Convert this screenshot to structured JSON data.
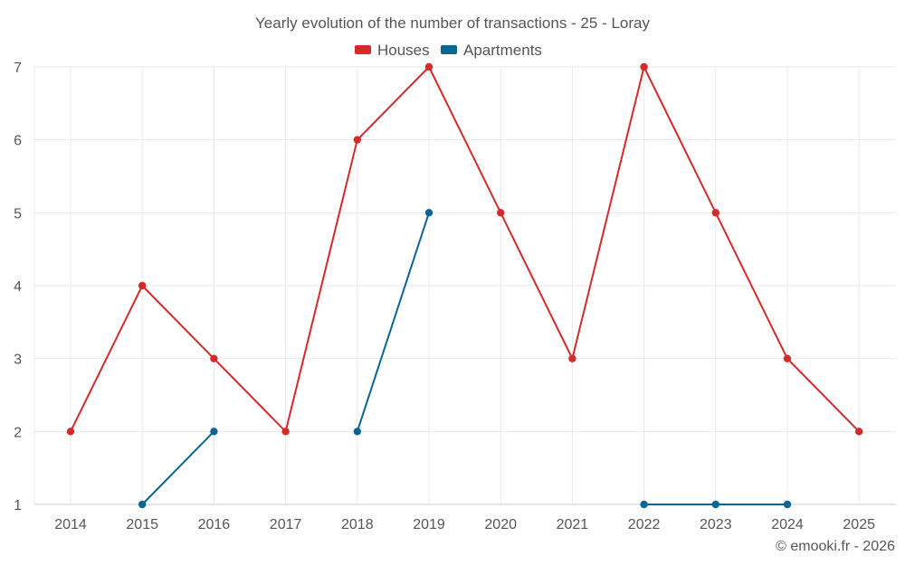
{
  "chart_data": {
    "type": "line",
    "title": "Yearly evolution of the number of transactions - 25 - Loray",
    "categories": [
      "2014",
      "2015",
      "2016",
      "2017",
      "2018",
      "2019",
      "2020",
      "2021",
      "2022",
      "2023",
      "2024",
      "2025"
    ],
    "series": [
      {
        "name": "Houses",
        "color": "#d42a2a",
        "values": [
          2,
          4,
          3,
          2,
          6,
          7,
          5,
          3,
          7,
          5,
          3,
          2
        ]
      },
      {
        "name": "Apartments",
        "color": "#0a6496",
        "values": [
          null,
          1,
          2,
          null,
          2,
          5,
          null,
          null,
          1,
          1,
          1,
          null
        ]
      }
    ],
    "ylim": [
      1,
      7
    ],
    "yticks": [
      1,
      2,
      3,
      4,
      5,
      6,
      7
    ],
    "xlabel": "",
    "ylabel": "",
    "grid": true,
    "legend_position": "top-center",
    "credit": "© emooki.fr - 2026"
  }
}
